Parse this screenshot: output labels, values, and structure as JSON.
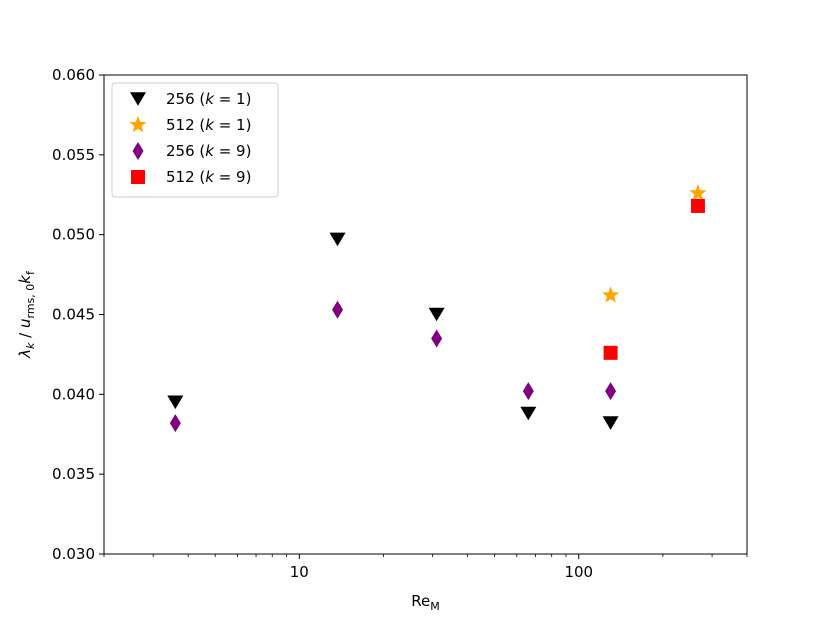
{
  "chart_data": {
    "type": "scatter",
    "xscale": "log",
    "xlim": [
      2.0,
      400
    ],
    "ylim": [
      0.03,
      0.06
    ],
    "xticks": [
      {
        "value": 10,
        "label": "10"
      },
      {
        "value": 100,
        "label": "100"
      }
    ],
    "yticks": [
      {
        "value": 0.03,
        "label": "0.030"
      },
      {
        "value": 0.035,
        "label": "0.035"
      },
      {
        "value": 0.04,
        "label": "0.040"
      },
      {
        "value": 0.045,
        "label": "0.045"
      },
      {
        "value": 0.05,
        "label": "0.050"
      },
      {
        "value": 0.055,
        "label": "0.055"
      },
      {
        "value": 0.06,
        "label": "0.060"
      }
    ],
    "xlabel": {
      "main": "Re",
      "sub": "M"
    },
    "ylabel": "λ_k / u_rms,0 k_f",
    "grid": false,
    "legend_position": "upper-left",
    "series": [
      {
        "name": "256 (k = 1)",
        "legend": {
          "pre": "256 (",
          "var": "k",
          "post": " = 1)"
        },
        "marker": "triangle-down",
        "color": "#000000",
        "points": [
          {
            "x": 3.6,
            "y": 0.0395
          },
          {
            "x": 13.7,
            "y": 0.0497
          },
          {
            "x": 31,
            "y": 0.045
          },
          {
            "x": 66,
            "y": 0.0388
          },
          {
            "x": 130,
            "y": 0.0382
          }
        ]
      },
      {
        "name": "512 (k = 1)",
        "legend": {
          "pre": "512 (",
          "var": "k",
          "post": " = 1)"
        },
        "marker": "star",
        "color": "#ffa500",
        "points": [
          {
            "x": 130,
            "y": 0.0462
          },
          {
            "x": 267,
            "y": 0.0526
          }
        ]
      },
      {
        "name": "256 (k = 9)",
        "legend": {
          "pre": "256 (",
          "var": "k",
          "post": " = 9)"
        },
        "marker": "thin-diamond",
        "color": "#800080",
        "points": [
          {
            "x": 3.6,
            "y": 0.0382
          },
          {
            "x": 13.7,
            "y": 0.0453
          },
          {
            "x": 31,
            "y": 0.0435
          },
          {
            "x": 66,
            "y": 0.0402
          },
          {
            "x": 130,
            "y": 0.0402
          }
        ]
      },
      {
        "name": "512 (k = 9)",
        "legend": {
          "pre": "512 (",
          "var": "k",
          "post": " = 9)"
        },
        "marker": "square",
        "color": "#ff0000",
        "points": [
          {
            "x": 130,
            "y": 0.0426
          },
          {
            "x": 267,
            "y": 0.0518
          }
        ]
      }
    ]
  }
}
